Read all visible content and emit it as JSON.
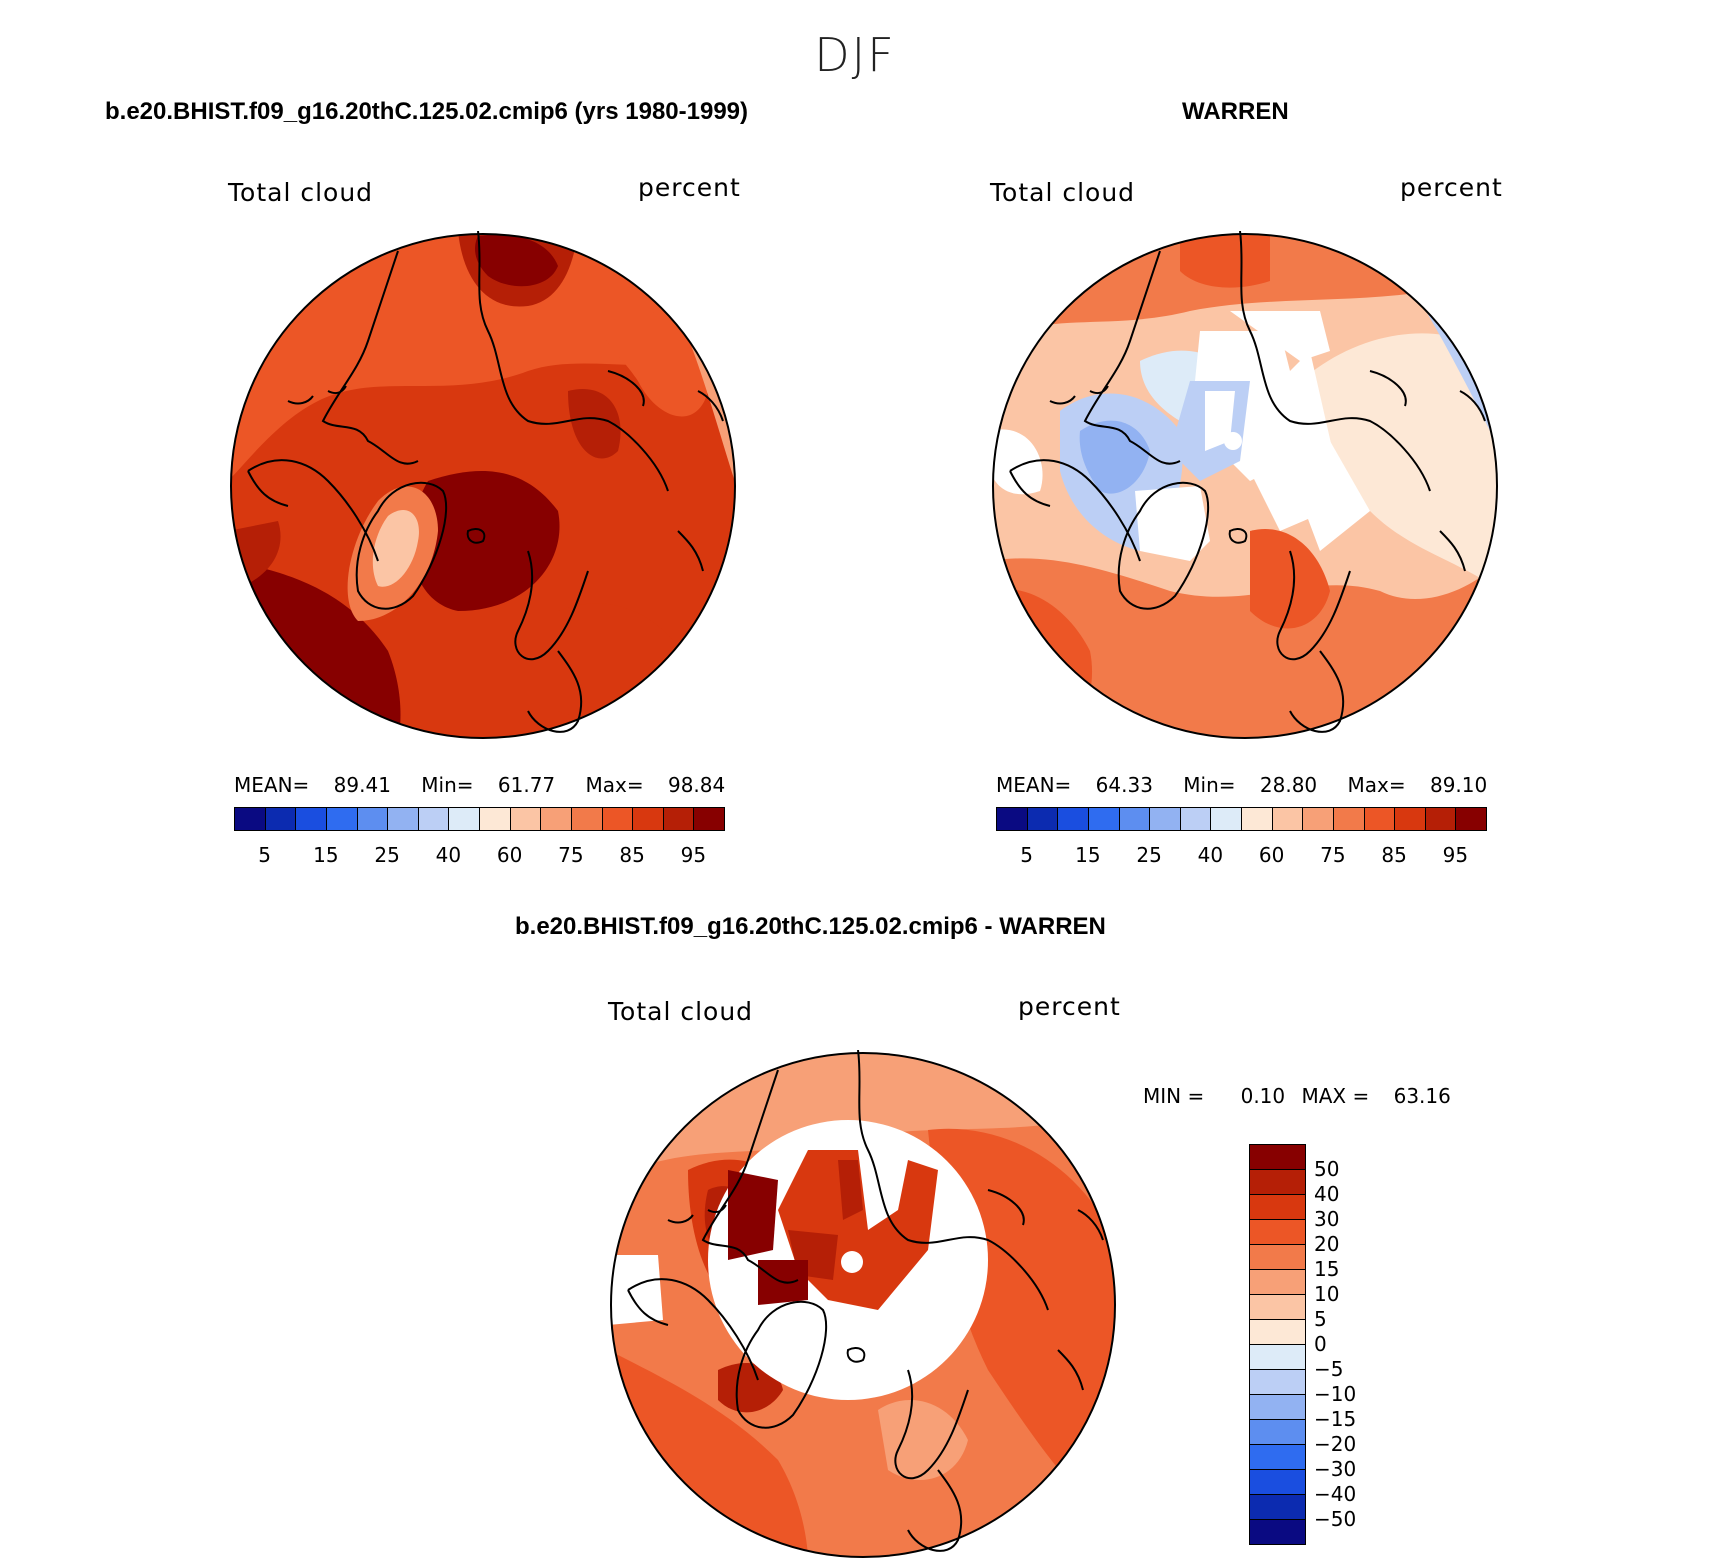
{
  "figure": {
    "suptitle": "DJF"
  },
  "panels": [
    {
      "case_title": "b.e20.BHIST.f09_g16.20thC.125.02.cmip6 (yrs 1980-1999)",
      "var_label": "Total cloud",
      "unit_label": "percent",
      "stats": {
        "mean_label": "MEAN=",
        "mean": "89.41",
        "min_label": "Min=",
        "min": "61.77",
        "max_label": "Max=",
        "max": "98.84"
      },
      "colorbar_ticks": [
        "5",
        "15",
        "25",
        "40",
        "60",
        "75",
        "85",
        "95"
      ]
    },
    {
      "case_title": "WARREN",
      "var_label": "Total cloud",
      "unit_label": "percent",
      "stats": {
        "mean_label": "MEAN=",
        "mean": "64.33",
        "min_label": "Min=",
        "min": "28.80",
        "max_label": "Max=",
        "max": "89.10"
      },
      "colorbar_ticks": [
        "5",
        "15",
        "25",
        "40",
        "60",
        "75",
        "85",
        "95"
      ]
    }
  ],
  "difference_panel": {
    "case_title": "b.e20.BHIST.f09_g16.20thC.125.02.cmip6 - WARREN",
    "var_label": "Total cloud",
    "unit_label": "percent",
    "stats": {
      "min_label": "MIN =",
      "min": "0.10",
      "max_label": "MAX =",
      "max": "63.16"
    },
    "colorbar_ticks": [
      "50",
      "40",
      "30",
      "20",
      "15",
      "10",
      "5",
      "0",
      "−5",
      "−10",
      "−15",
      "−20",
      "−30",
      "−40",
      "−50"
    ]
  },
  "colors": {
    "abs_scale": [
      "#0a0a82",
      "#0c2bb0",
      "#1a4ee0",
      "#2f6cf0",
      "#5d8ef0",
      "#92b2f2",
      "#bccff5",
      "#ddebf8",
      "#fde8d6",
      "#fbc5a5",
      "#f7a077",
      "#f27a4a",
      "#ec5626",
      "#d8380f",
      "#b51f06",
      "#870000"
    ],
    "diff_scale": [
      "#870000",
      "#b51f06",
      "#d8380f",
      "#ec5626",
      "#f27a4a",
      "#f7a077",
      "#fbc5a5",
      "#fde8d6",
      "#ddebf8",
      "#bccff5",
      "#92b2f2",
      "#5d8ef0",
      "#2f6cf0",
      "#1a4ee0",
      "#0c2bb0",
      "#0a0a82"
    ],
    "missing": "#ffffff",
    "coastline": "#000000"
  },
  "map_projection": "polar stereographic (north pole)"
}
